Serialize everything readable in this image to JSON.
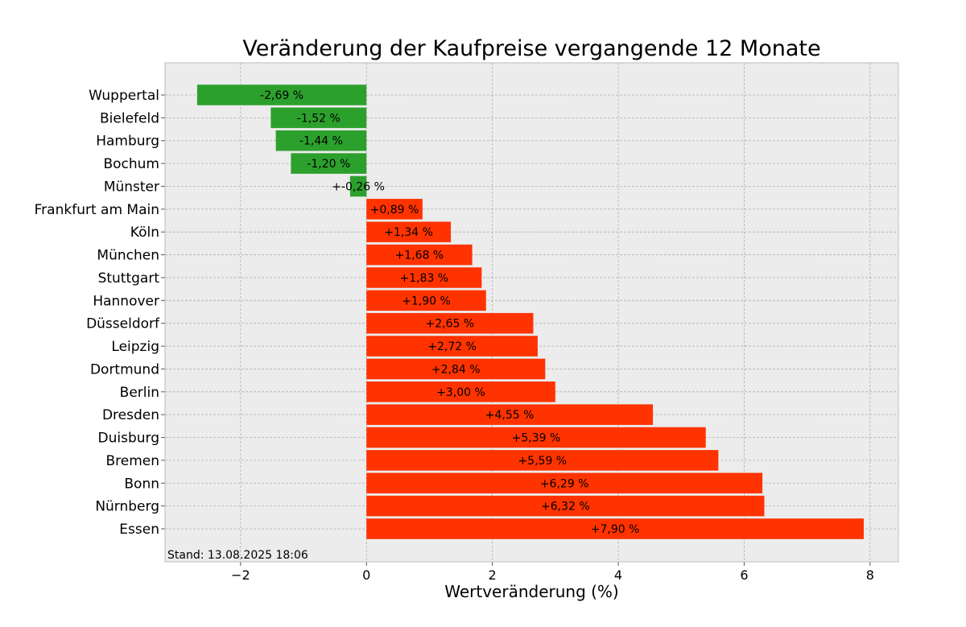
{
  "chart_data": {
    "type": "bar",
    "orientation": "horizontal",
    "title": "Veränderung der Kaufpreise vergangende 12 Monate",
    "xlabel": "Wertveränderung (%)",
    "ylabel": "",
    "xlim": [
      -3.2,
      8.45
    ],
    "xticks": [
      -2,
      0,
      2,
      4,
      6,
      8
    ],
    "xtick_labels": [
      "−2",
      "0",
      "2",
      "4",
      "6",
      "8"
    ],
    "grid": true,
    "footnote": "Stand: 13.08.2025 18:06",
    "categories": [
      "Wuppertal",
      "Bielefeld",
      "Hamburg",
      "Bochum",
      "Münster",
      "Frankfurt am Main",
      "Köln",
      "München",
      "Stuttgart",
      "Hannover",
      "Düsseldorf",
      "Leipzig",
      "Dortmund",
      "Berlin",
      "Dresden",
      "Duisburg",
      "Bremen",
      "Bonn",
      "Nürnberg",
      "Essen"
    ],
    "values": [
      -2.69,
      -1.52,
      -1.44,
      -1.2,
      -0.26,
      0.89,
      1.34,
      1.68,
      1.83,
      1.9,
      2.65,
      2.72,
      2.84,
      3.0,
      4.55,
      5.39,
      5.59,
      6.29,
      6.32,
      7.9
    ],
    "value_labels": [
      "-2,69 %",
      "-1,52 %",
      "-1,44 %",
      "-1,20 %",
      "+-0,26 %",
      "+0,89 %",
      "+1,34 %",
      "+1,68 %",
      "+1,83 %",
      "+1,90 %",
      "+2,65 %",
      "+2,72 %",
      "+2,84 %",
      "+3,00 %",
      "+4,55 %",
      "+5,39 %",
      "+5,59 %",
      "+6,29 %",
      "+6,32 %",
      "+7,90 %"
    ],
    "colors": {
      "negative": "#2ca02c",
      "positive": "#ff3300",
      "background": "#ececec"
    }
  }
}
